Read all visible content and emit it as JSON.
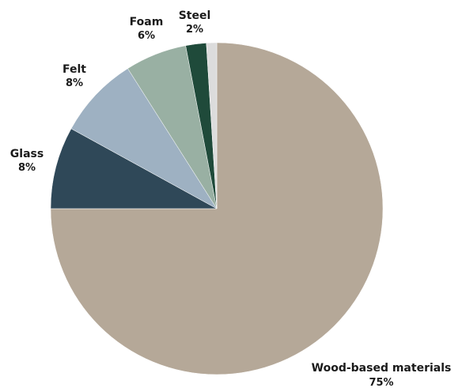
{
  "chart_data": {
    "type": "pie",
    "title": "",
    "legend": "none",
    "slices": [
      {
        "label": "Wood-based materials",
        "percent_label": "75%",
        "value": 75,
        "color": "#b5a898"
      },
      {
        "label": "Glass",
        "percent_label": "8%",
        "value": 8,
        "color": "#2f4858"
      },
      {
        "label": "Felt",
        "percent_label": "8%",
        "value": 8,
        "color": "#9eb1c2"
      },
      {
        "label": "Foam",
        "percent_label": "6%",
        "value": 6,
        "color": "#99b0a3"
      },
      {
        "label": "Steel",
        "percent_label": "2%",
        "value": 2,
        "color": "#1f4a3a"
      },
      {
        "label": "",
        "percent_label": "",
        "value": 1,
        "color": "#dcdcdc"
      }
    ]
  }
}
